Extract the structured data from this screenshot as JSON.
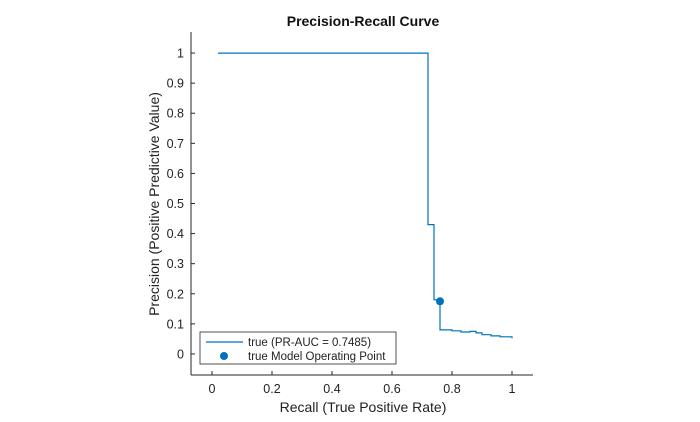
{
  "chart_data": {
    "type": "line",
    "title": "Precision-Recall Curve",
    "xlabel": "Recall (True Positive Rate)",
    "ylabel": "Precision (Positive Predictive Value)",
    "xlim": [
      -0.07,
      1.07
    ],
    "ylim": [
      -0.07,
      1.07
    ],
    "xticks": [
      "0",
      "0.2",
      "0.4",
      "0.6",
      "0.8",
      "1"
    ],
    "yticks": [
      "0",
      "0.1",
      "0.2",
      "0.3",
      "0.4",
      "0.5",
      "0.6",
      "0.7",
      "0.8",
      "0.9",
      "1"
    ],
    "grid": false,
    "legend_position": "bottom-left",
    "series": [
      {
        "name": "true (PR-AUC = 0.7485)",
        "style": "step-line",
        "color": "#0072BD",
        "x": [
          0.02,
          0.72,
          0.72,
          0.74,
          0.74,
          0.755,
          0.755,
          0.76,
          0.76,
          0.8,
          0.8,
          0.83,
          0.83,
          0.86,
          0.86,
          0.88,
          0.88,
          0.9,
          0.9,
          0.93,
          0.93,
          0.96,
          0.96,
          1.0,
          1.0
        ],
        "y": [
          1.0,
          1.0,
          0.43,
          0.43,
          0.18,
          0.18,
          0.17,
          0.17,
          0.08,
          0.08,
          0.077,
          0.077,
          0.073,
          0.073,
          0.075,
          0.075,
          0.07,
          0.07,
          0.064,
          0.064,
          0.06,
          0.06,
          0.057,
          0.057,
          0.052
        ]
      },
      {
        "name": "true Model Operating Point",
        "style": "marker",
        "color": "#0072BD",
        "x": [
          0.76
        ],
        "y": [
          0.175
        ]
      }
    ]
  }
}
